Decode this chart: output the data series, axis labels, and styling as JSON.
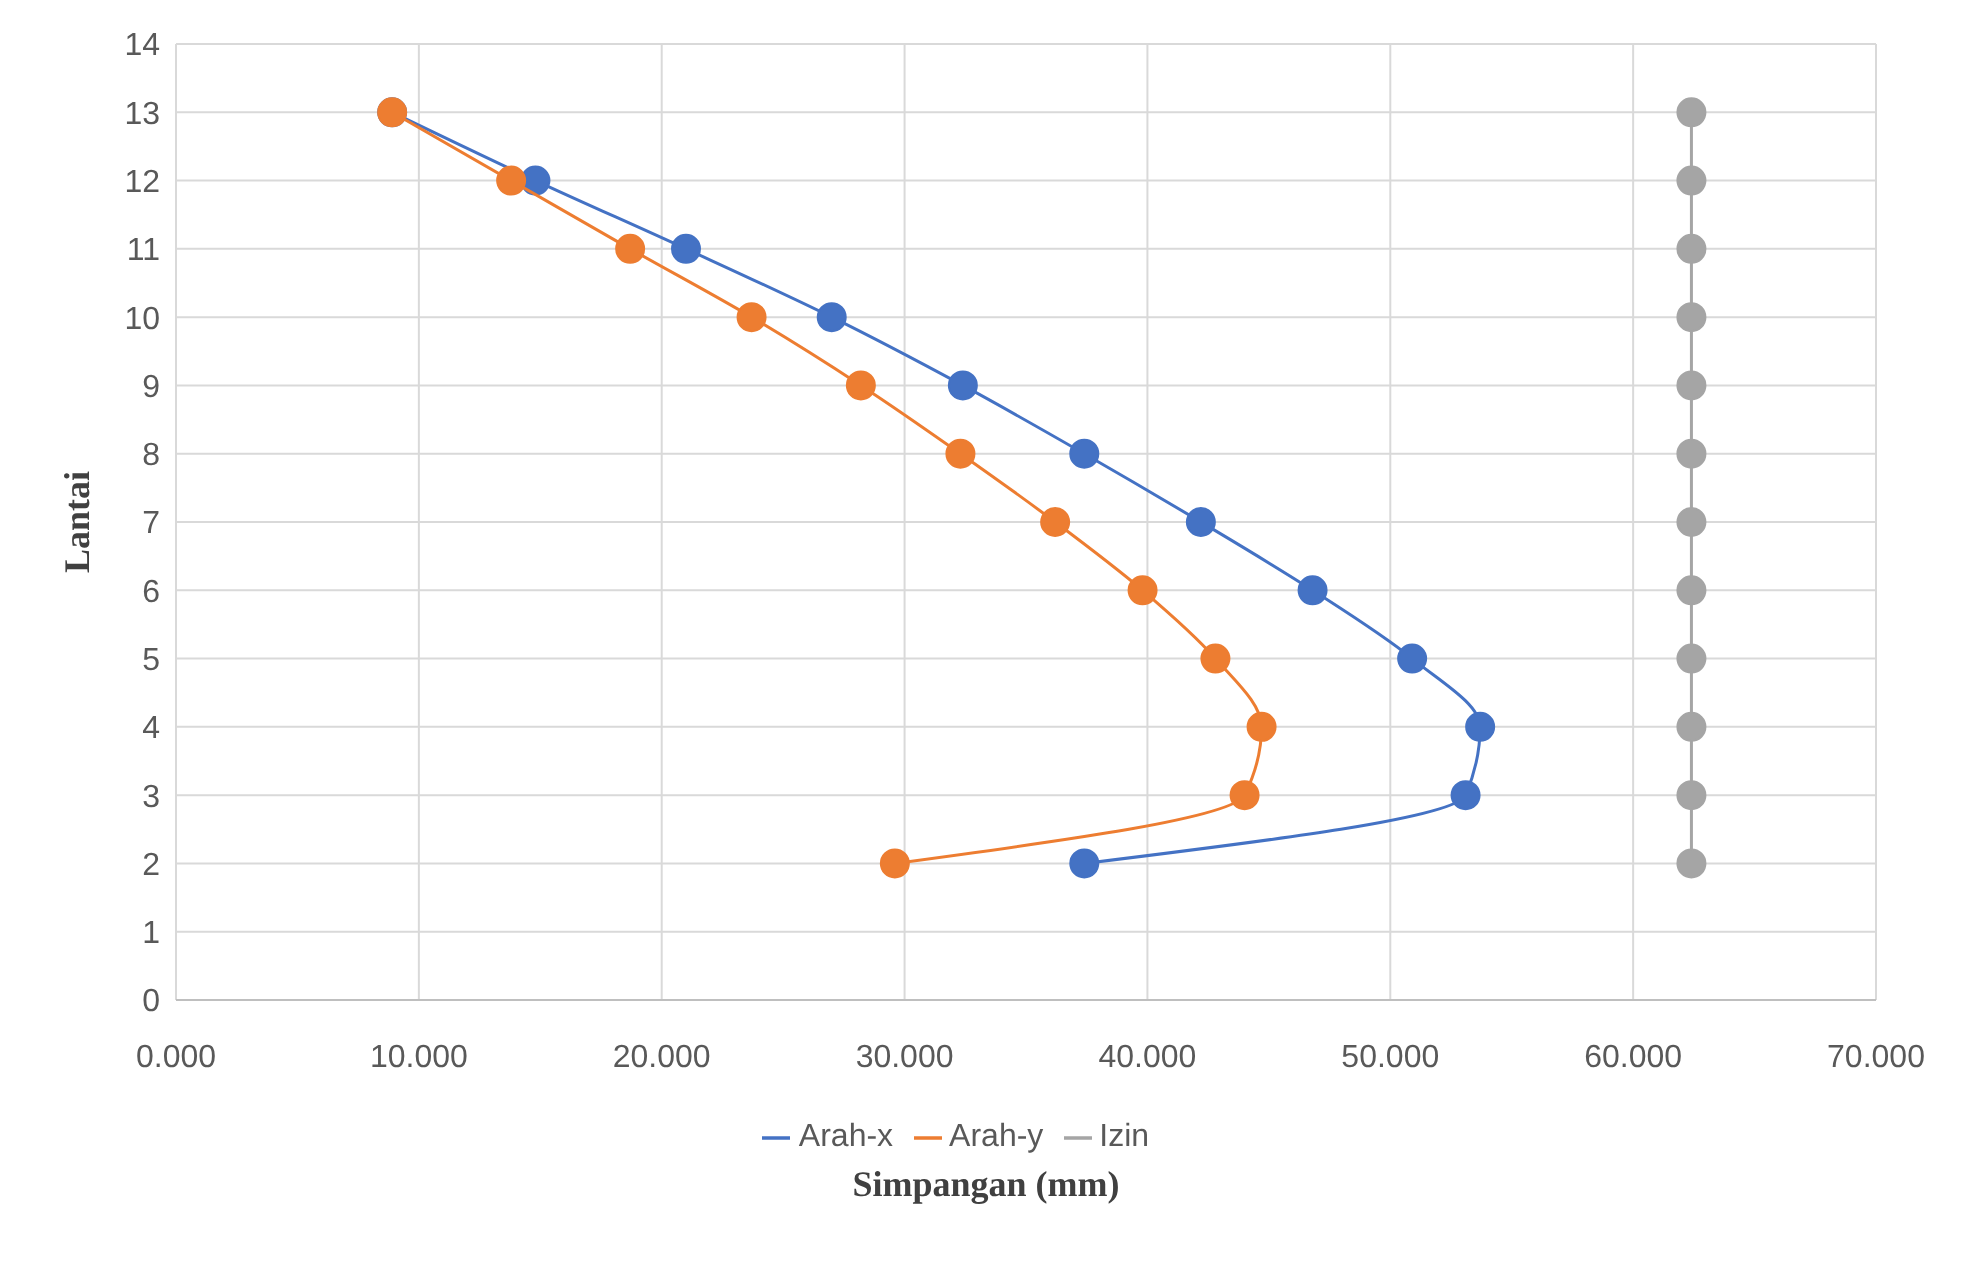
{
  "chart_data": {
    "type": "line",
    "xlabel": "Simpangan (mm)",
    "ylabel": "Lantai",
    "xlim": [
      0,
      70
    ],
    "ylim": [
      0,
      14
    ],
    "xticks": [
      {
        "value": 0,
        "label": "0.000"
      },
      {
        "value": 10,
        "label": "10.000"
      },
      {
        "value": 20,
        "label": "20.000"
      },
      {
        "value": 30,
        "label": "30.000"
      },
      {
        "value": 40,
        "label": "40.000"
      },
      {
        "value": 50,
        "label": "50.000"
      },
      {
        "value": 60,
        "label": "60.000"
      },
      {
        "value": 70,
        "label": "70.000"
      }
    ],
    "yticks": [
      0,
      1,
      2,
      3,
      4,
      5,
      6,
      7,
      8,
      9,
      10,
      11,
      12,
      13,
      14
    ],
    "grid": true,
    "legend": "bottom",
    "marker": "circle",
    "line_style": "solid",
    "series": [
      {
        "name": "Arah-x",
        "color": "#4472c4",
        "x": [
          8.9,
          14.8,
          21.0,
          27.0,
          32.4,
          37.4,
          42.2,
          46.8,
          50.9,
          53.7,
          53.1,
          37.4
        ],
        "values": [
          13,
          12,
          11,
          10,
          9,
          8,
          7,
          6,
          5,
          4,
          3,
          2
        ]
      },
      {
        "name": "Arah-y",
        "color": "#ed7d31",
        "x": [
          8.9,
          13.8,
          18.7,
          23.7,
          28.2,
          32.3,
          36.2,
          39.8,
          42.8,
          44.7,
          44.0,
          29.6
        ],
        "values": [
          13,
          12,
          11,
          10,
          9,
          8,
          7,
          6,
          5,
          4,
          3,
          2
        ]
      },
      {
        "name": "Izin",
        "color": "#a5a5a5",
        "x": [
          62.4,
          62.4,
          62.4,
          62.4,
          62.4,
          62.4,
          62.4,
          62.4,
          62.4,
          62.4,
          62.4,
          62.4
        ],
        "values": [
          13,
          12,
          11,
          10,
          9,
          8,
          7,
          6,
          5,
          4,
          3,
          2
        ]
      }
    ]
  }
}
